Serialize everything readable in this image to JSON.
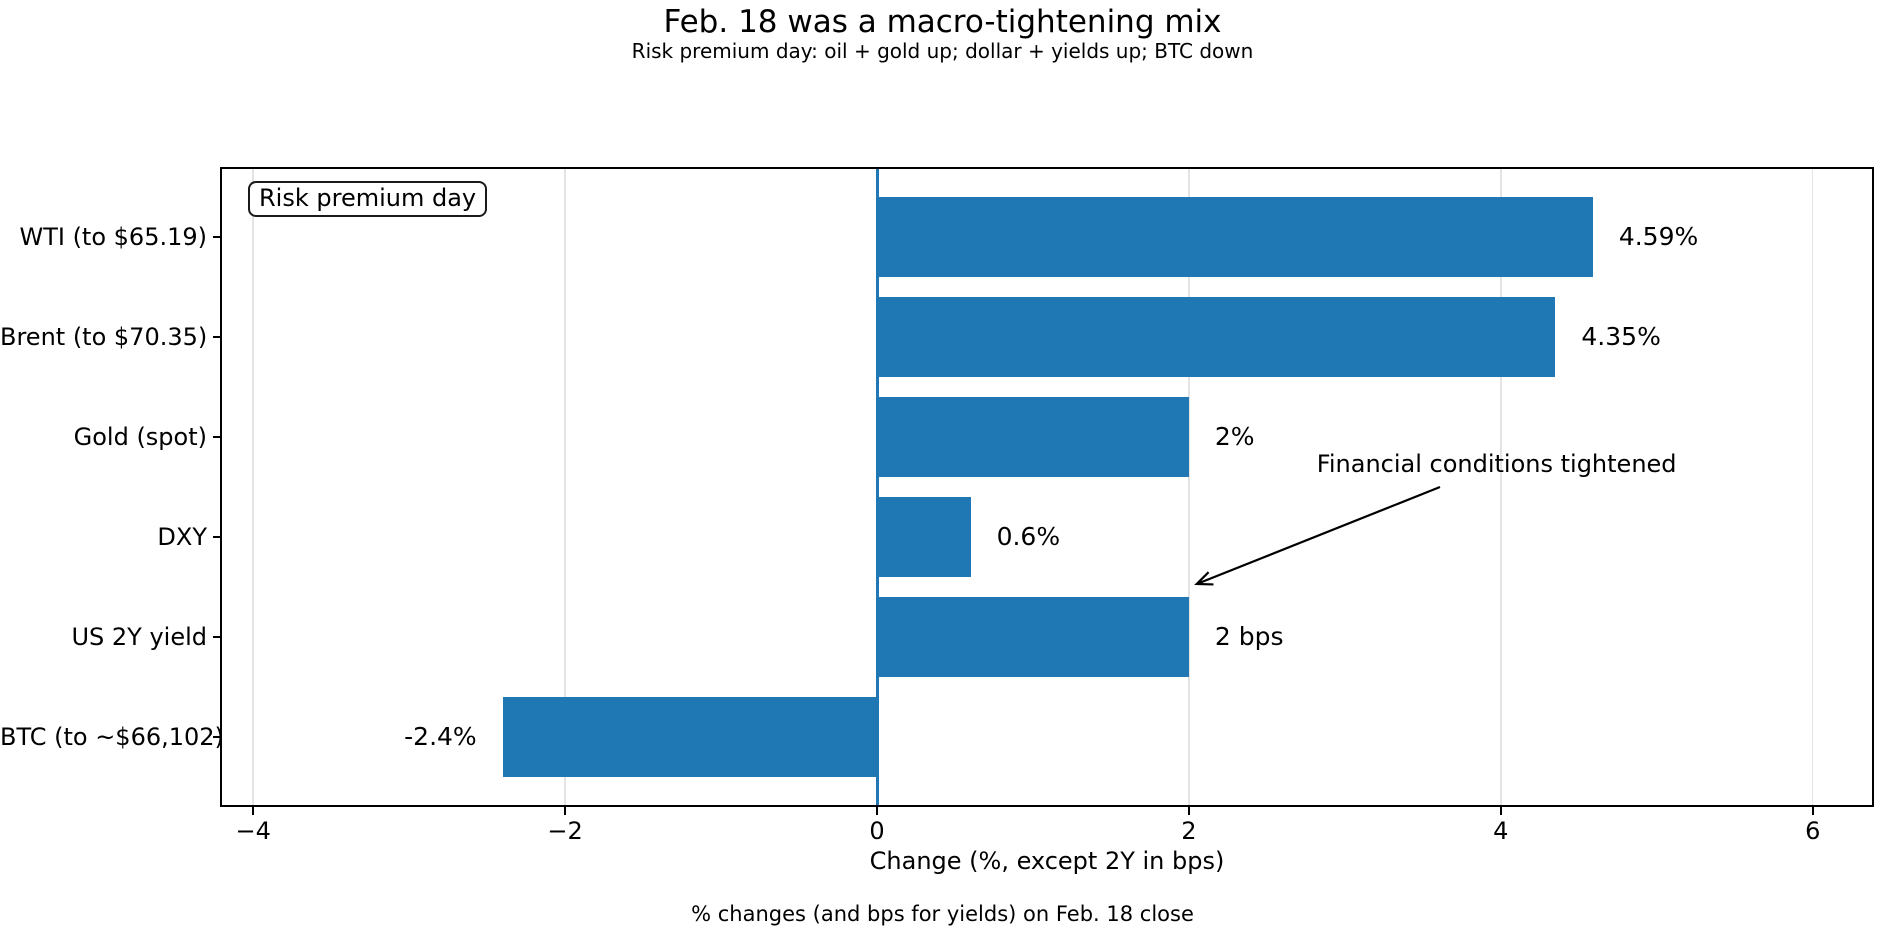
{
  "chart_data": {
    "type": "bar",
    "orientation": "horizontal",
    "title": "Feb. 18 was a macro-tightening mix",
    "subtitle": "Risk premium day: oil + gold up; dollar + yields up; BTC down",
    "xlabel": "Change (%, except 2Y in bps)",
    "caption": "% changes (and bps for yields) on Feb. 18 close",
    "categories": [
      "WTI (to $65.19)",
      "Brent (to $70.35)",
      "Gold (spot)",
      "DXY",
      "US 2Y yield",
      "BTC (to ~$66,102)"
    ],
    "values": [
      4.59,
      4.35,
      2.0,
      0.6,
      2.0,
      -2.4
    ],
    "value_labels": [
      "4.59%",
      "4.35%",
      "2%",
      "0.6%",
      "2 bps",
      "-2.4%"
    ],
    "xticks": [
      -4,
      -2,
      0,
      2,
      4,
      6
    ],
    "xtick_labels": [
      "−4",
      "−2",
      "0",
      "2",
      "4",
      "6"
    ],
    "xlim": [
      -4.2,
      6.38
    ],
    "grid": true,
    "grid_color": "#e4e4e4",
    "bar_color": "#1f77b4",
    "zero_line": {
      "x": 0,
      "color": "#1f77b4"
    },
    "legend": {
      "label": "Risk premium day",
      "position": "upper-left"
    },
    "annotation": {
      "text": "Financial conditions tightened",
      "text_x": 2.82,
      "text_row": 2.27,
      "arrow_from_x": 3.61,
      "arrow_from_row": 2.5,
      "arrow_to_x": 2.05,
      "arrow_to_row": 3.47
    }
  }
}
